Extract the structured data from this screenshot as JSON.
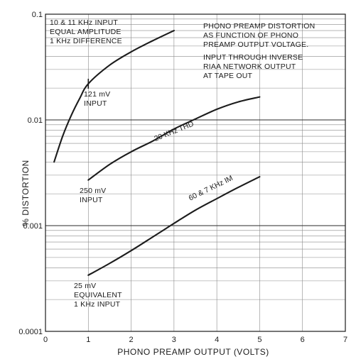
{
  "chart_data": {
    "type": "line",
    "xlabel": "PHONO PREAMP OUTPUT (VOLTS)",
    "ylabel": "% DISTORTION",
    "xlim": [
      0,
      7
    ],
    "ylim": [
      0.0001,
      0.1
    ],
    "yscale": "log",
    "grid": true,
    "x_ticks": [
      "0",
      "1",
      "2",
      "3",
      "4",
      "5",
      "6",
      "7"
    ],
    "y_ticks": [
      {
        "value": 0.1,
        "label": "0.1"
      },
      {
        "value": 0.01,
        "label": "0.01"
      },
      {
        "value": 0.001,
        "label": "0.001"
      },
      {
        "value": 0.0001,
        "label": "0.0001"
      }
    ],
    "annotation_blocks": [
      {
        "lines": [
          "10 & 11 KHz INPUT",
          "EQUAL AMPLITUDE",
          "1 KHz DIFFERENCE"
        ]
      },
      {
        "lines": [
          "PHONO PREAMP DISTORTION",
          "AS FUNCTION OF PHONO",
          "PREAMP OUTPUT VOLTAGE.",
          "INPUT THROUGH INVERSE",
          "RIAA NETWORK OUTPUT",
          "AT TAPE OUT"
        ]
      }
    ],
    "series": [
      {
        "name": "",
        "start_label": [
          "121 mV",
          "INPUT"
        ],
        "x": [
          0.2,
          0.4,
          0.6,
          0.8,
          1.0,
          1.5,
          2.0,
          2.5,
          3.0
        ],
        "y": [
          0.004,
          0.007,
          0.011,
          0.016,
          0.022,
          0.033,
          0.044,
          0.056,
          0.07
        ]
      },
      {
        "name": "20 KHz THD",
        "start_label": [
          "250 mV",
          "INPUT"
        ],
        "x": [
          1.0,
          1.5,
          2.0,
          2.5,
          3.0,
          3.5,
          4.0,
          4.5,
          5.0
        ],
        "y": [
          0.0027,
          0.0038,
          0.005,
          0.0063,
          0.0082,
          0.0102,
          0.0126,
          0.0148,
          0.0165
        ]
      },
      {
        "name": "60 & 7 KHz IM",
        "start_label": [
          "25 mV",
          "EQUIVALENT",
          "1 KHz INPUT"
        ],
        "x": [
          1.0,
          1.5,
          2.0,
          2.5,
          3.0,
          3.5,
          4.0,
          4.5,
          5.0
        ],
        "y": [
          0.00034,
          0.00044,
          0.00058,
          0.00078,
          0.00105,
          0.0014,
          0.0018,
          0.0023,
          0.0029
        ]
      }
    ]
  }
}
